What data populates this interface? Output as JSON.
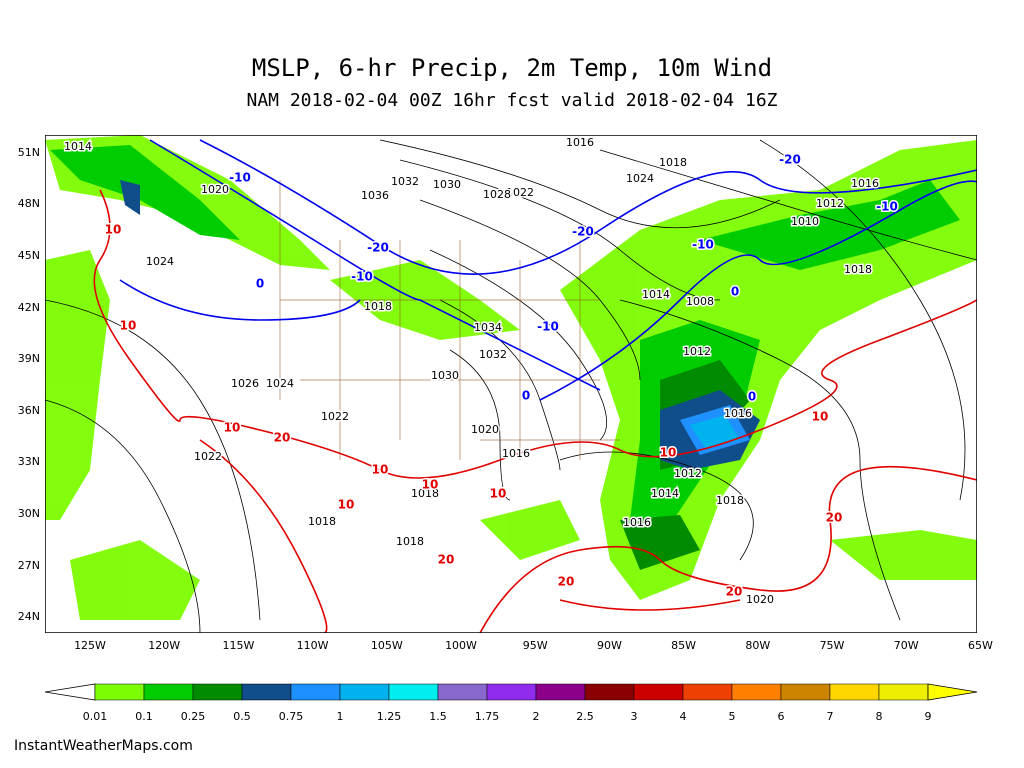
{
  "map": {
    "title": "MSLP, 6-hr Precip, 2m Temp, 10m Wind",
    "subtitle": "NAM 2018-02-04 00Z 16hr fcst valid 2018-02-04 16Z",
    "lat_labels": [
      "51N",
      "48N",
      "45N",
      "42N",
      "39N",
      "36N",
      "33N",
      "30N",
      "27N",
      "24N"
    ],
    "lon_labels": [
      "125W",
      "120W",
      "115W",
      "110W",
      "105W",
      "100W",
      "95W",
      "90W",
      "85W",
      "80W",
      "75W",
      "70W",
      "65W"
    ],
    "legend": {
      "labels": [
        "0.01",
        "0.1",
        "0.25",
        "0.5",
        "0.75",
        "1",
        "1.25",
        "1.5",
        "1.75",
        "2",
        "2.5",
        "3",
        "4",
        "5",
        "6",
        "7",
        "8",
        "9"
      ],
      "colors": [
        "#7cfc00",
        "#00cd00",
        "#008b00",
        "#104e8b",
        "#1e90ff",
        "#00b2ee",
        "#00eeee",
        "#8968cd",
        "#912cee",
        "#8b008b",
        "#8b0000",
        "#cd0000",
        "#ee4000",
        "#ff7f00",
        "#cd8500",
        "#ffd700",
        "#eeee00"
      ],
      "low_color": "#ffffff",
      "high_color": "#ffff00"
    },
    "credit": "InstantWeatherMaps.com",
    "pressure_labels": [
      "1014",
      "1016",
      "1018",
      "1020",
      "1022",
      "1024",
      "1028",
      "1030",
      "1032",
      "1034",
      "1036",
      "1016",
      "1012",
      "1010",
      "1008",
      "1012",
      "1016",
      "1014",
      "1012",
      "1014",
      "1016",
      "1018",
      "1020",
      "1018",
      "1016",
      "1018",
      "1018",
      "1018",
      "1022",
      "1024",
      "1026",
      "1030",
      "1032",
      "1018",
      "1020",
      "1024",
      "1022"
    ],
    "temp_labels_blue": [
      "-10",
      "-20",
      "-20",
      "-10",
      "-10",
      "-20",
      "-10",
      "-10",
      "0",
      "0",
      "0",
      "0"
    ],
    "temp_labels_red": [
      "10",
      "10",
      "10",
      "10",
      "10",
      "10",
      "20",
      "20",
      "20",
      "20",
      "10",
      "10",
      "10",
      "20"
    ]
  }
}
